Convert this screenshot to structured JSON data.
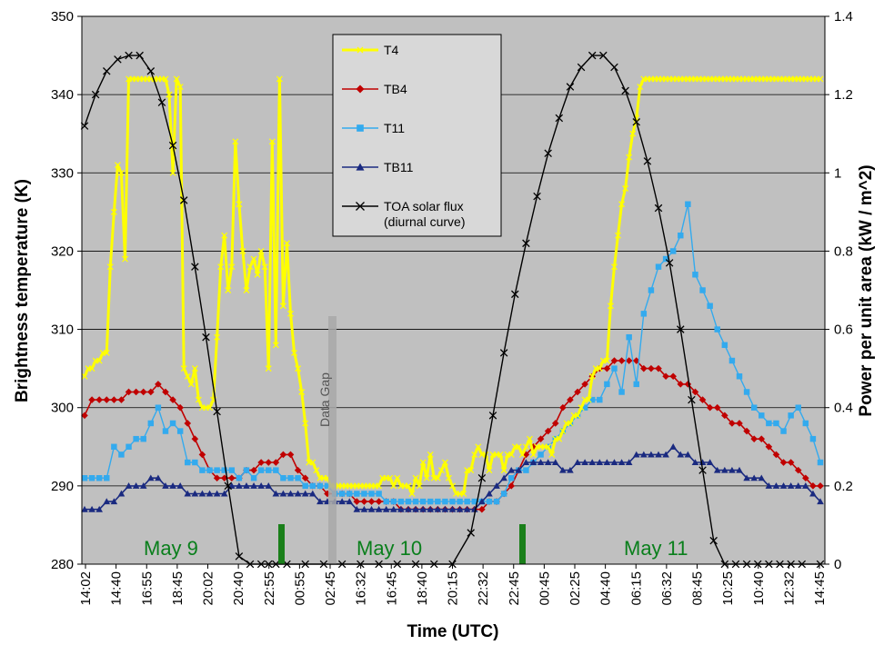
{
  "chart_data": {
    "type": "line",
    "xlabel": "Time (UTC)",
    "ylabel": "Brightness temperature (K)",
    "y2label": "Power per unit area (kW / m^2)",
    "ylim": [
      280,
      350
    ],
    "y2lim": [
      0,
      1.4
    ],
    "grid": true,
    "legend_position": "top-center",
    "x_tick_labels": [
      "14:02",
      "14:40",
      "16:55",
      "18:45",
      "20:02",
      "20:40",
      "22:55",
      "00:55",
      "02:45",
      "16:32",
      "16:45",
      "18:40",
      "20:15",
      "22:32",
      "22:45",
      "00:45",
      "02:25",
      "04:40",
      "06:15",
      "06:32",
      "08:45",
      "10:25",
      "10:40",
      "12:32",
      "14:45"
    ],
    "annotations": {
      "days": [
        "May 9",
        "May 10",
        "May 11"
      ],
      "gap": "Data Gap"
    },
    "series": [
      {
        "name": "T4",
        "axis": "left",
        "color": "#ffff00",
        "marker": "x",
        "x": [
          0,
          1,
          2,
          3,
          4,
          5,
          6,
          7,
          8,
          9,
          10,
          11,
          12,
          13,
          14,
          15,
          16,
          17,
          18,
          19,
          20,
          21,
          22,
          23,
          24,
          25,
          26,
          27,
          28,
          29,
          30,
          31,
          32,
          33,
          34,
          35,
          36,
          37,
          38,
          39,
          40,
          41,
          42,
          43,
          44,
          45,
          46,
          47,
          48,
          49,
          50,
          51,
          52,
          53,
          54,
          55,
          56,
          57,
          58,
          59,
          60,
          61,
          62,
          63,
          64,
          65,
          66,
          67,
          68,
          69,
          70,
          71,
          72,
          73,
          74,
          75,
          76,
          77,
          78,
          79,
          80,
          81,
          82,
          83,
          84,
          85,
          86,
          87,
          88,
          89,
          90,
          91,
          92,
          93,
          94,
          95,
          96,
          97,
          98,
          99,
          100,
          101,
          102,
          103,
          104,
          105,
          106,
          107,
          108,
          109,
          110,
          111,
          112,
          113,
          114,
          115,
          116,
          117,
          118,
          119,
          120,
          121,
          122,
          123,
          124,
          125,
          126,
          127,
          128,
          129,
          130,
          131,
          132,
          133,
          134,
          135,
          136,
          137,
          138,
          139,
          140,
          141,
          142,
          143,
          144,
          145,
          146,
          147,
          148,
          149,
          150,
          151,
          152,
          153,
          154,
          155,
          156,
          157,
          158,
          159,
          160,
          161,
          162,
          163,
          164,
          165,
          166,
          167,
          168,
          169,
          170,
          171,
          172,
          173,
          174,
          175,
          176,
          177,
          178,
          179,
          180,
          181,
          182,
          183,
          184,
          185,
          186,
          187,
          188,
          189,
          190,
          191,
          192,
          193,
          194,
          195,
          196,
          197,
          198,
          199,
          200
        ],
        "values": [
          304,
          305,
          305,
          306,
          306,
          307,
          307,
          318,
          325,
          331,
          330,
          319,
          342,
          342,
          342,
          342,
          342,
          342,
          342,
          342,
          342,
          342,
          342,
          340,
          330,
          342,
          341,
          305,
          304,
          303,
          305,
          301,
          300,
          300,
          300,
          301,
          309,
          318,
          322,
          315,
          318,
          334,
          326,
          320,
          315,
          318,
          319,
          317,
          320,
          318,
          305,
          334,
          308,
          342,
          313,
          321,
          312,
          307,
          305,
          302,
          298,
          293,
          293,
          292,
          291,
          291,
          291,
          290,
          290,
          290,
          290,
          290,
          290,
          290,
          290,
          290,
          290,
          290,
          290,
          290,
          290,
          291,
          291,
          291,
          290,
          291,
          290,
          290,
          290,
          289,
          291,
          290,
          293,
          291,
          294,
          291,
          291,
          292,
          293,
          291,
          290,
          289,
          289,
          289,
          292,
          292,
          294,
          295,
          294,
          294,
          292,
          294,
          294,
          294,
          292,
          294,
          294,
          295,
          295,
          294,
          295,
          296,
          294,
          295,
          295,
          295,
          295,
          294,
          296,
          296,
          297,
          298,
          298,
          299,
          299,
          300,
          301,
          301,
          304,
          305,
          305,
          306,
          306,
          313,
          318,
          322,
          326,
          328,
          332,
          335,
          337,
          341,
          342,
          342,
          342,
          342,
          342,
          342,
          342,
          342,
          342,
          342,
          342,
          342,
          342,
          342,
          342,
          342,
          342,
          342,
          342,
          342,
          342,
          342,
          342,
          342,
          342,
          342,
          342,
          342,
          342,
          342,
          342,
          342,
          342,
          342,
          342,
          342,
          342,
          342,
          342,
          342,
          342,
          342,
          342,
          342,
          342,
          342,
          342,
          342,
          342
        ]
      },
      {
        "name": "TB4",
        "axis": "left",
        "color": "#c00000",
        "marker": "diamond",
        "x": [
          0,
          2,
          4,
          6,
          8,
          10,
          12,
          14,
          16,
          18,
          20,
          22,
          24,
          26,
          28,
          30,
          32,
          34,
          36,
          38,
          40,
          42,
          44,
          46,
          48,
          50,
          52,
          54,
          56,
          58,
          60,
          62,
          64,
          66,
          68,
          70,
          72,
          74,
          76,
          78,
          80,
          82,
          84,
          86,
          88,
          90,
          92,
          94,
          96,
          98,
          100,
          102,
          104,
          106,
          108,
          110,
          112,
          114,
          116,
          118,
          120,
          122,
          124,
          126,
          128,
          130,
          132,
          134,
          136,
          138,
          140,
          142,
          144,
          146,
          148,
          150,
          152,
          154,
          156,
          158,
          160,
          162,
          164,
          166,
          168,
          170,
          172,
          174,
          176,
          178,
          180,
          182,
          184,
          186,
          188,
          190,
          192,
          194,
          196,
          198,
          200
        ],
        "values": [
          299,
          301,
          301,
          301,
          301,
          301,
          302,
          302,
          302,
          302,
          303,
          302,
          301,
          300,
          298,
          296,
          294,
          292,
          291,
          291,
          291,
          291,
          292,
          292,
          293,
          293,
          293,
          294,
          294,
          292,
          291,
          290,
          290,
          289,
          289,
          289,
          289,
          288,
          288,
          288,
          288,
          288,
          288,
          287,
          287,
          287,
          287,
          287,
          287,
          287,
          287,
          287,
          287,
          287,
          287,
          288,
          288,
          289,
          290,
          292,
          294,
          295,
          296,
          297,
          298,
          300,
          301,
          302,
          303,
          304,
          305,
          305,
          306,
          306,
          306,
          306,
          305,
          305,
          305,
          304,
          304,
          303,
          303,
          302,
          301,
          300,
          300,
          299,
          298,
          298,
          297,
          296,
          296,
          295,
          294,
          293,
          293,
          292,
          291,
          290,
          290
        ]
      },
      {
        "name": "T11",
        "axis": "left",
        "color": "#33aaee",
        "marker": "square",
        "x": [
          0,
          2,
          4,
          6,
          8,
          10,
          12,
          14,
          16,
          18,
          20,
          22,
          24,
          26,
          28,
          30,
          32,
          34,
          36,
          38,
          40,
          42,
          44,
          46,
          48,
          50,
          52,
          54,
          56,
          58,
          60,
          62,
          64,
          66,
          68,
          70,
          72,
          74,
          76,
          78,
          80,
          82,
          84,
          86,
          88,
          90,
          92,
          94,
          96,
          98,
          100,
          102,
          104,
          106,
          108,
          110,
          112,
          114,
          116,
          118,
          120,
          122,
          124,
          126,
          128,
          130,
          132,
          134,
          136,
          138,
          140,
          142,
          144,
          146,
          148,
          150,
          152,
          154,
          156,
          158,
          160,
          162,
          164,
          166,
          168,
          170,
          172,
          174,
          176,
          178,
          180,
          182,
          184,
          186,
          188,
          190,
          192,
          194,
          196,
          198,
          200
        ],
        "values": [
          291,
          291,
          291,
          291,
          295,
          294,
          295,
          296,
          296,
          298,
          300,
          297,
          298,
          297,
          293,
          293,
          292,
          292,
          292,
          292,
          292,
          291,
          292,
          291,
          292,
          292,
          292,
          291,
          291,
          291,
          290,
          290,
          290,
          290,
          289,
          289,
          289,
          289,
          289,
          289,
          289,
          288,
          288,
          288,
          288,
          288,
          288,
          288,
          288,
          288,
          288,
          288,
          288,
          288,
          288,
          288,
          288,
          289,
          291,
          292,
          292,
          293,
          294,
          295,
          296,
          297,
          298,
          299,
          300,
          301,
          301,
          303,
          305,
          302,
          309,
          303,
          312,
          315,
          318,
          319,
          320,
          322,
          326,
          317,
          315,
          313,
          310,
          308,
          306,
          304,
          302,
          300,
          299,
          298,
          298,
          297,
          299,
          300,
          298,
          296,
          293
        ]
      },
      {
        "name": "TB11",
        "axis": "left",
        "color": "#1a2a80",
        "marker": "triangle",
        "x": [
          0,
          2,
          4,
          6,
          8,
          10,
          12,
          14,
          16,
          18,
          20,
          22,
          24,
          26,
          28,
          30,
          32,
          34,
          36,
          38,
          40,
          42,
          44,
          46,
          48,
          50,
          52,
          54,
          56,
          58,
          60,
          62,
          64,
          66,
          68,
          70,
          72,
          74,
          76,
          78,
          80,
          82,
          84,
          86,
          88,
          90,
          92,
          94,
          96,
          98,
          100,
          102,
          104,
          106,
          108,
          110,
          112,
          114,
          116,
          118,
          120,
          122,
          124,
          126,
          128,
          130,
          132,
          134,
          136,
          138,
          140,
          142,
          144,
          146,
          148,
          150,
          152,
          154,
          156,
          158,
          160,
          162,
          164,
          166,
          168,
          170,
          172,
          174,
          176,
          178,
          180,
          182,
          184,
          186,
          188,
          190,
          192,
          194,
          196,
          198,
          200
        ],
        "values": [
          287,
          287,
          287,
          288,
          288,
          289,
          290,
          290,
          290,
          291,
          291,
          290,
          290,
          290,
          289,
          289,
          289,
          289,
          289,
          289,
          290,
          290,
          290,
          290,
          290,
          290,
          289,
          289,
          289,
          289,
          289,
          289,
          288,
          288,
          288,
          288,
          288,
          287,
          287,
          287,
          287,
          287,
          287,
          287,
          287,
          287,
          287,
          287,
          287,
          287,
          287,
          287,
          287,
          287,
          288,
          289,
          290,
          291,
          292,
          292,
          293,
          293,
          293,
          293,
          293,
          292,
          292,
          293,
          293,
          293,
          293,
          293,
          293,
          293,
          293,
          294,
          294,
          294,
          294,
          294,
          295,
          294,
          294,
          293,
          293,
          293,
          292,
          292,
          292,
          292,
          291,
          291,
          291,
          290,
          290,
          290,
          290,
          290,
          290,
          289,
          288
        ]
      },
      {
        "name": "TOA solar flux\n(diurnal curve)",
        "axis": "right",
        "color": "#000000",
        "marker": "x",
        "x": [
          0,
          3,
          6,
          9,
          12,
          15,
          18,
          21,
          24,
          27,
          30,
          33,
          36,
          39,
          42,
          45,
          48,
          50,
          52,
          55,
          60,
          65,
          70,
          75,
          80,
          85,
          90,
          95,
          100,
          105,
          108,
          111,
          114,
          117,
          120,
          123,
          126,
          129,
          132,
          135,
          138,
          141,
          144,
          147,
          150,
          153,
          156,
          159,
          162,
          165,
          168,
          171,
          174,
          177,
          180,
          183,
          186,
          189,
          192,
          195,
          200
        ],
        "values": [
          1.12,
          1.2,
          1.26,
          1.29,
          1.3,
          1.3,
          1.26,
          1.18,
          1.07,
          0.93,
          0.76,
          0.58,
          0.39,
          0.2,
          0.02,
          0,
          0,
          0,
          0,
          0,
          0,
          0,
          0,
          0,
          0,
          0,
          0,
          0,
          0,
          0.08,
          0.22,
          0.38,
          0.54,
          0.69,
          0.82,
          0.94,
          1.05,
          1.14,
          1.22,
          1.27,
          1.3,
          1.3,
          1.27,
          1.21,
          1.13,
          1.03,
          0.91,
          0.77,
          0.6,
          0.42,
          0.24,
          0.06,
          0,
          0,
          0,
          0,
          0,
          0,
          0,
          0,
          0
        ]
      }
    ]
  }
}
